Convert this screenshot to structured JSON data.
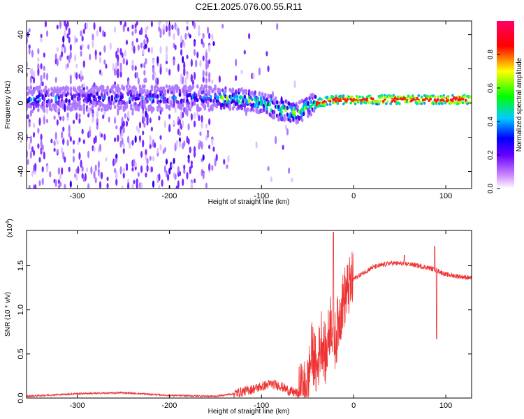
{
  "chart_data": [
    {
      "type": "heatmap",
      "title": "C2E1.2025.076.00.55.R11",
      "xlabel": "Height of straight line (km)",
      "ylabel": "Frequency (Hz)",
      "xlim": [
        -355,
        128
      ],
      "ylim": [
        -50,
        48
      ],
      "xticks": [
        -300,
        -200,
        -100,
        0,
        100
      ],
      "yticks": [
        -40,
        -20,
        0,
        20,
        40
      ],
      "colorbar": {
        "label": "Normalized spectral amplitude",
        "range": [
          0.0,
          1.0
        ],
        "ticks": [
          "0.0",
          "0.2",
          "0.4",
          "0.6",
          "0.8"
        ],
        "colors": [
          "#ffffff",
          "#cc88ff",
          "#6600ff",
          "#0000ff",
          "#00ccff",
          "#00ff00",
          "#ffff00",
          "#ff0000",
          "#ff0066"
        ]
      },
      "ridge": {
        "description_points_x": [
          -355,
          -300,
          -250,
          -200,
          -150,
          -120,
          -100,
          -80,
          -60,
          -50,
          -40,
          -30,
          -20,
          0,
          50,
          80,
          90,
          128
        ],
        "description_points_y": [
          2,
          3,
          3,
          3,
          3,
          2,
          0,
          -4,
          -6,
          -2,
          0,
          1,
          2,
          2,
          2,
          2,
          2,
          2
        ],
        "peak_amplitude_from_x": -40
      }
    },
    {
      "type": "line",
      "xlabel": "Height of straight line (km)",
      "ylabel": "SNR (10 * v/v)",
      "scale_label": "(x10",
      "scale_exponent": "4",
      "scale_suffix": ")",
      "xlim": [
        -355,
        128
      ],
      "ylim": [
        0,
        1.9
      ],
      "xticks": [
        -300,
        -200,
        -100,
        0,
        100
      ],
      "yticks": [
        "0.0",
        "0.5",
        "1.0",
        "1.5"
      ],
      "series_color": "#ee3333",
      "anchors_x": [
        -355,
        -300,
        -250,
        -200,
        -150,
        -130,
        -110,
        -90,
        -80,
        -70,
        -60,
        -55,
        -50,
        -45,
        -40,
        -35,
        -30,
        -25,
        -20,
        -15,
        -10,
        0,
        20,
        40,
        60,
        80,
        90,
        100,
        128
      ],
      "anchors_y": [
        0.02,
        0.05,
        0.06,
        0.03,
        0.02,
        0.05,
        0.1,
        0.16,
        0.14,
        0.08,
        0.05,
        0.06,
        0.15,
        0.55,
        0.3,
        0.7,
        0.45,
        0.9,
        0.65,
        0.95,
        1.15,
        1.35,
        1.48,
        1.53,
        1.52,
        1.48,
        1.45,
        1.4,
        1.36
      ],
      "spikes": [
        {
          "x": -22,
          "y": 1.88
        },
        {
          "x": 90,
          "y": 0.67
        },
        {
          "x": 88,
          "y": 1.72
        },
        {
          "x": 55,
          "y": 1.62
        }
      ]
    }
  ]
}
